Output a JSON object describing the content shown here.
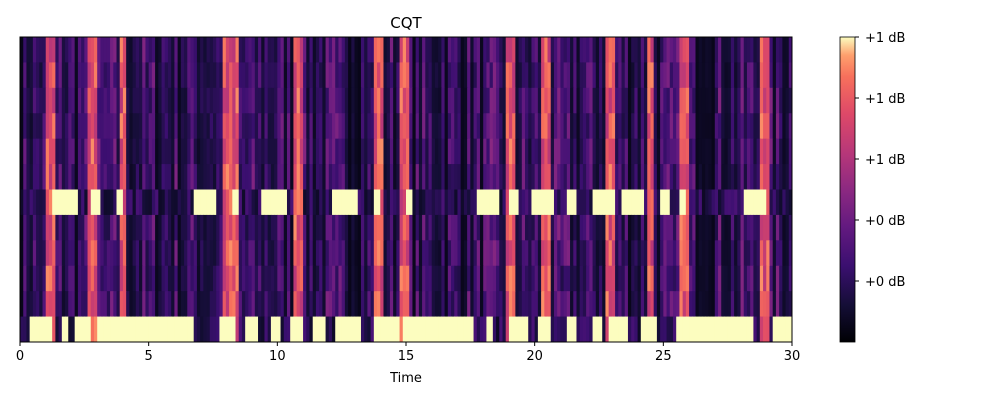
{
  "chart_data": {
    "type": "heatmap",
    "title": "CQT",
    "xlabel": "Time",
    "ylabel": "",
    "xlim": [
      0,
      30
    ],
    "x_ticks": [
      0,
      5,
      10,
      15,
      20,
      25,
      30
    ],
    "x_tick_labels": [
      "0",
      "5",
      "10",
      "15",
      "20",
      "25",
      "30"
    ],
    "rows": 12,
    "grid": false,
    "colormap": "magma",
    "colorbar": {
      "tick_labels": [
        "+1 dB",
        "+1 dB",
        "+1 dB",
        "+0 dB",
        "+0 dB"
      ],
      "tick_levels": [
        1.0,
        0.8,
        0.6,
        0.4,
        0.2
      ],
      "range": [
        0,
        1
      ]
    },
    "bright_segments": [
      {
        "row": 6,
        "spans": [
          [
            1.2,
            2.2
          ],
          [
            2.7,
            3.1
          ],
          [
            3.8,
            4.0
          ],
          [
            6.8,
            7.6
          ],
          [
            8.2,
            8.5
          ],
          [
            9.4,
            10.4
          ],
          [
            12.1,
            13.1
          ],
          [
            13.7,
            14.0
          ],
          [
            15.0,
            15.2
          ],
          [
            17.8,
            18.6
          ],
          [
            19.0,
            19.4
          ],
          [
            19.9,
            20.8
          ],
          [
            21.3,
            21.6
          ],
          [
            22.2,
            23.1
          ],
          [
            23.4,
            24.2
          ],
          [
            24.9,
            25.3
          ],
          [
            25.6,
            25.9
          ],
          [
            28.1,
            29.0
          ]
        ]
      },
      {
        "row": 11,
        "spans": [
          [
            0.4,
            1.2
          ],
          [
            1.6,
            1.9
          ],
          [
            2.1,
            2.8
          ],
          [
            3.0,
            6.8
          ],
          [
            7.7,
            8.4
          ],
          [
            8.7,
            9.3
          ],
          [
            9.8,
            10.1
          ],
          [
            10.5,
            11.0
          ],
          [
            11.4,
            11.9
          ],
          [
            12.3,
            13.2
          ],
          [
            13.8,
            14.8
          ],
          [
            14.9,
            17.6
          ],
          [
            18.1,
            18.4
          ],
          [
            19.0,
            19.8
          ],
          [
            20.1,
            20.6
          ],
          [
            21.3,
            21.6
          ],
          [
            22.2,
            22.6
          ],
          [
            22.9,
            23.6
          ],
          [
            24.1,
            24.7
          ],
          [
            25.5,
            26.1
          ],
          [
            26.1,
            28.5
          ],
          [
            29.2,
            30.0
          ]
        ]
      }
    ],
    "bright_columns": [
      1.2,
      2.8,
      4.0,
      8.1,
      8.3,
      10.8,
      13.9,
      14.9,
      15.0,
      19.1,
      20.4,
      22.9,
      24.5,
      25.8,
      28.9
    ]
  }
}
